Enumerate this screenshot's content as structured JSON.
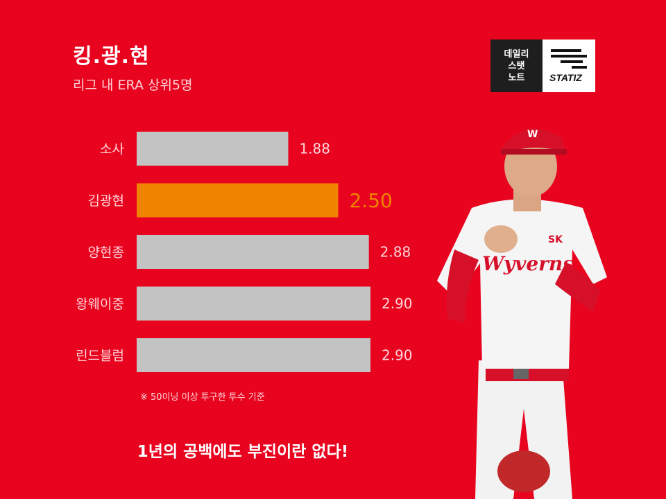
{
  "header": {
    "title": "킹.광.현",
    "subtitle": "리그 내 ERA 상위5명"
  },
  "logo": {
    "left_lines": [
      "데일리",
      "스탯",
      "노트"
    ],
    "brand": "STATIZ"
  },
  "footnote": "※ 50이닝 이상 투구한 투수 기준",
  "slogan": "1년의 공백에도 부진이란 없다!",
  "colors": {
    "background": "#e8041f",
    "bar_default": "#c3c3c3",
    "bar_highlight": "#f08300",
    "label_highlight": "#f08300",
    "label_default": "#ffd6da"
  },
  "chart_data": {
    "type": "bar",
    "orientation": "horizontal",
    "categories": [
      "소사",
      "김광현",
      "양현종",
      "왕웨이중",
      "린드블럼"
    ],
    "values": [
      1.88,
      2.5,
      2.88,
      2.9,
      2.9
    ],
    "value_labels": [
      "1.88",
      "2.50",
      "2.88",
      "2.90",
      "2.90"
    ],
    "highlight": "김광현",
    "xlim": [
      0,
      3.4
    ],
    "grid": false,
    "legend": "none"
  }
}
